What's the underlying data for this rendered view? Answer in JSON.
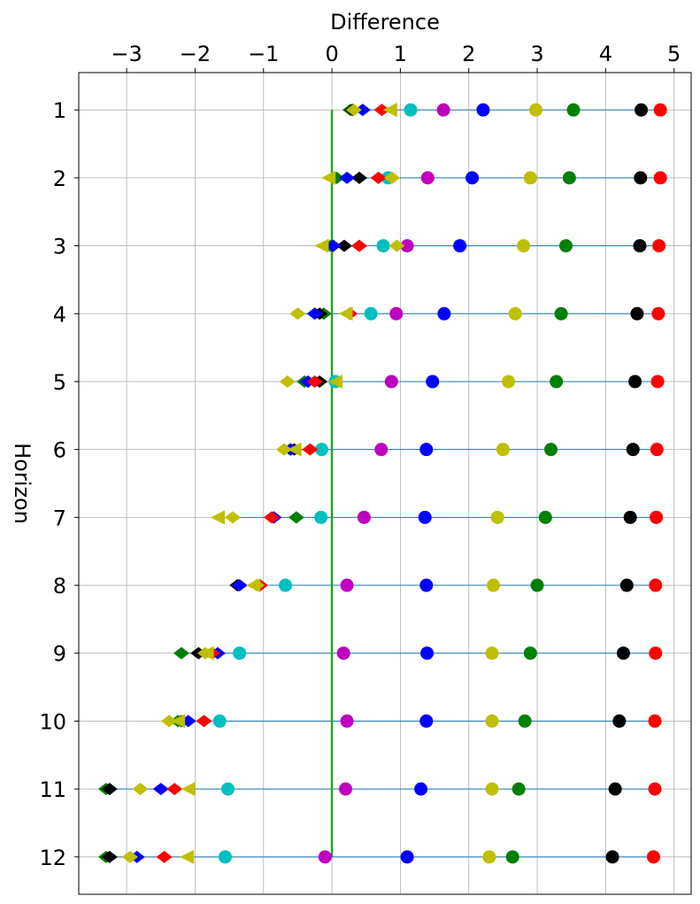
{
  "chart_data": {
    "type": "scatter",
    "xlabel": "Difference",
    "ylabel": "Horizon",
    "xlim": [
      -3.7,
      5.25
    ],
    "ylim": [
      12.55,
      0.45
    ],
    "xaxis_position": "top",
    "grid": true,
    "x_ticks": [
      -3,
      -2,
      -1,
      0,
      1,
      2,
      3,
      4,
      5
    ],
    "x_tick_labels": [
      "−3",
      "−2",
      "−1",
      "0",
      "1",
      "2",
      "3",
      "4",
      "5"
    ],
    "y_ticks": [
      1,
      2,
      3,
      4,
      5,
      6,
      7,
      8,
      9,
      10,
      11,
      12
    ],
    "y_tick_labels": [
      "1",
      "2",
      "3",
      "4",
      "5",
      "6",
      "7",
      "8",
      "9",
      "10",
      "11",
      "12"
    ],
    "reference_line": {
      "x": 0,
      "y_from": 1,
      "y_to": 12,
      "color": "#2ca02c"
    },
    "row_line_color": "#1f77b4",
    "series": [
      {
        "name": "red-circle",
        "marker": "circle",
        "color": "#ff0000",
        "x": [
          4.8,
          4.8,
          4.78,
          4.77,
          4.76,
          4.75,
          4.74,
          4.73,
          4.73,
          4.72,
          4.72,
          4.7
        ],
        "y": [
          1,
          2,
          3,
          4,
          5,
          6,
          7,
          8,
          9,
          10,
          11,
          12
        ]
      },
      {
        "name": "black-circle",
        "marker": "circle",
        "color": "#000000",
        "x": [
          4.52,
          4.51,
          4.5,
          4.46,
          4.43,
          4.4,
          4.36,
          4.31,
          4.26,
          4.2,
          4.14,
          4.1
        ],
        "y": [
          1,
          2,
          3,
          4,
          5,
          6,
          7,
          8,
          9,
          10,
          11,
          12
        ]
      },
      {
        "name": "green-circle",
        "marker": "circle",
        "color": "#008000",
        "x": [
          3.53,
          3.47,
          3.42,
          3.35,
          3.28,
          3.2,
          3.12,
          3.0,
          2.9,
          2.82,
          2.73,
          2.64
        ],
        "y": [
          1,
          2,
          3,
          4,
          5,
          6,
          7,
          8,
          9,
          10,
          11,
          12
        ]
      },
      {
        "name": "yellow-circle",
        "marker": "circle",
        "color": "#bfbf00",
        "x": [
          2.98,
          2.9,
          2.8,
          2.68,
          2.58,
          2.5,
          2.42,
          2.36,
          2.34,
          2.34,
          2.34,
          2.3
        ],
        "y": [
          1,
          2,
          3,
          4,
          5,
          6,
          7,
          8,
          9,
          10,
          11,
          12
        ]
      },
      {
        "name": "blue-circle",
        "marker": "circle",
        "color": "#0000ff",
        "x": [
          2.21,
          2.05,
          1.87,
          1.64,
          1.47,
          1.38,
          1.36,
          1.38,
          1.39,
          1.38,
          1.3,
          1.1
        ],
        "y": [
          1,
          2,
          3,
          4,
          5,
          6,
          7,
          8,
          9,
          10,
          11,
          12
        ]
      },
      {
        "name": "magenta-circle",
        "marker": "circle",
        "color": "#bf00bf",
        "x": [
          1.63,
          1.4,
          1.1,
          0.94,
          0.87,
          0.72,
          0.47,
          0.22,
          0.17,
          0.22,
          0.2,
          -0.1
        ],
        "y": [
          1,
          2,
          3,
          4,
          5,
          6,
          7,
          8,
          9,
          10,
          11,
          12
        ]
      },
      {
        "name": "cyan-circle",
        "marker": "circle",
        "color": "#00bfbf",
        "x": [
          1.15,
          0.82,
          0.75,
          0.57,
          0.05,
          -0.15,
          -0.16,
          -0.68,
          -1.35,
          -1.64,
          -1.52,
          -1.56
        ],
        "y": [
          1,
          2,
          3,
          4,
          5,
          6,
          7,
          8,
          9,
          10,
          11,
          12
        ]
      },
      {
        "name": "green-diamond",
        "marker": "diamond",
        "color": "#008000",
        "x": [
          0.27,
          0.07,
          -0.02,
          -0.12,
          -0.4,
          -0.61,
          -0.52,
          -1.38,
          -2.2,
          -2.25,
          -3.3,
          -3.3
        ],
        "y": [
          1,
          2,
          3,
          4,
          5,
          6,
          7,
          8,
          9,
          10,
          11,
          12
        ]
      },
      {
        "name": "black-diamond",
        "marker": "diamond",
        "color": "#000000",
        "x": [
          0.3,
          0.4,
          0.18,
          -0.18,
          -0.18,
          -0.55,
          -0.85,
          -1.38,
          -1.95,
          -2.2,
          -3.25,
          -3.25
        ],
        "y": [
          1,
          2,
          3,
          4,
          5,
          6,
          7,
          8,
          9,
          10,
          11,
          12
        ]
      },
      {
        "name": "blue-diamond",
        "marker": "diamond",
        "color": "#0000ff",
        "x": [
          0.45,
          0.22,
          0.02,
          -0.25,
          -0.35,
          -0.6,
          -0.85,
          -1.35,
          -1.67,
          -2.1,
          -2.5,
          -2.85
        ],
        "y": [
          1,
          2,
          3,
          4,
          5,
          6,
          7,
          8,
          9,
          10,
          11,
          12
        ]
      },
      {
        "name": "red-diamond",
        "marker": "diamond",
        "color": "#ff0000",
        "x": [
          0.73,
          0.68,
          0.4,
          0.26,
          -0.25,
          -0.32,
          -0.88,
          -1.05,
          -1.75,
          -1.87,
          -2.3,
          -2.45
        ],
        "y": [
          1,
          2,
          3,
          4,
          5,
          6,
          7,
          8,
          9,
          10,
          11,
          12
        ]
      },
      {
        "name": "yellow-diamond",
        "marker": "diamond",
        "color": "#bfbf00",
        "x": [
          0.32,
          0.88,
          0.95,
          -0.5,
          -0.65,
          -0.7,
          -1.45,
          -1.1,
          -1.85,
          -2.38,
          -2.8,
          -2.95
        ],
        "y": [
          1,
          2,
          3,
          4,
          5,
          6,
          7,
          8,
          9,
          10,
          11,
          12
        ]
      },
      {
        "name": "yellow-triangle",
        "marker": "triangle-left",
        "color": "#bfbf00",
        "x": [
          0.85,
          -0.05,
          -0.15,
          0.2,
          0.05,
          -0.55,
          -1.67,
          -1.15,
          -1.83,
          -2.25,
          -2.1,
          -2.12
        ],
        "y": [
          1,
          2,
          3,
          4,
          5,
          6,
          7,
          8,
          9,
          10,
          11,
          12
        ]
      }
    ]
  }
}
